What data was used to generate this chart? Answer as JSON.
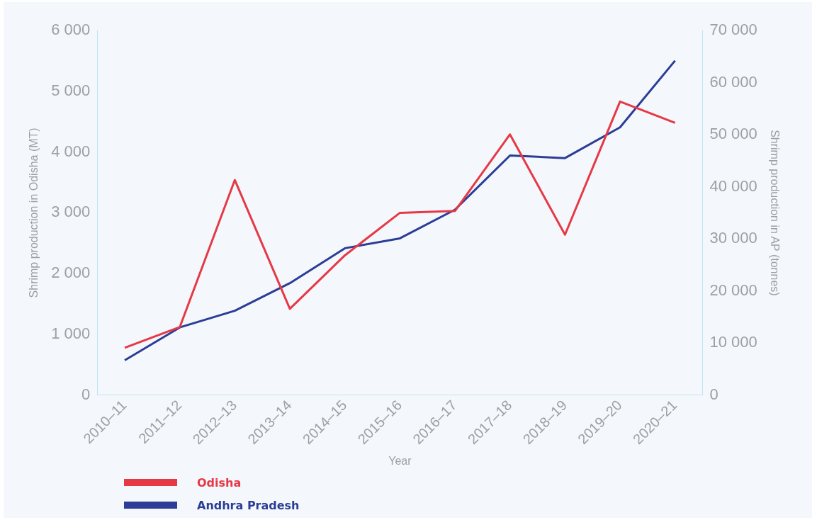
{
  "chart_data": {
    "type": "line",
    "xlabel": "Year",
    "ylabel": "Shrimp production in Odisha (MT)",
    "y2label": "Shrimp production in AP (tonnes)",
    "categories": [
      "2010–11",
      "2011–12",
      "2012–13",
      "2013–14",
      "2014–15",
      "2015–16",
      "2016–17",
      "2017–18",
      "2018–19",
      "2019–20",
      "2020–21"
    ],
    "series": [
      {
        "name": "Odisha",
        "color": "#e63946",
        "values": [
          780,
          1120,
          3540,
          1420,
          2300,
          3000,
          3030,
          4290,
          2640,
          4830,
          4480
        ]
      },
      {
        "name": "Andhra Pradesh",
        "color": "#2b3d96",
        "axis": "y2",
        "values": [
          6700,
          13000,
          16200,
          21500,
          28200,
          30100,
          35600,
          46000,
          45500,
          51400,
          64200
        ]
      }
    ],
    "ylim": [
      0,
      6000
    ],
    "yticks": [
      0,
      {
        "value": 1000,
        "label": "1 000"
      },
      {
        "value": 2000,
        "label": "2 000"
      },
      {
        "value": 3000,
        "label": "3 000"
      },
      {
        "value": 4000,
        "label": "4 000"
      },
      {
        "value": 5000,
        "label": "5 000"
      },
      {
        "value": 6000,
        "label": "6 000"
      }
    ],
    "y2lim": [
      0,
      70000
    ],
    "y2ticks": [
      0,
      {
        "value": 10000,
        "label": "10 000"
      },
      {
        "value": 20000,
        "label": "20 000"
      },
      {
        "value": 30000,
        "label": "30 000"
      },
      {
        "value": 40000,
        "label": "40 000"
      },
      {
        "value": 50000,
        "label": "50 000"
      },
      {
        "value": 60000,
        "label": "60 000"
      },
      {
        "value": 70000,
        "label": "70 000"
      }
    ],
    "grid": false,
    "legend": "bottom left",
    "marker": "none",
    "line_style": "solid"
  }
}
